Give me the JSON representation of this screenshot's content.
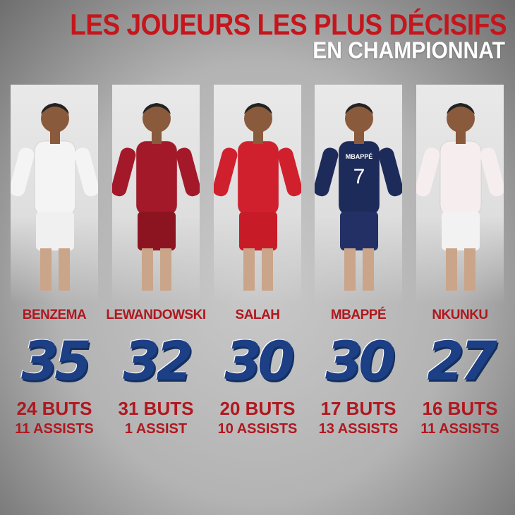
{
  "header": {
    "title": "LES JOUEURS LES PLUS DÉCISIFS",
    "subtitle": "EN CHAMPIONNAT"
  },
  "colors": {
    "accent_red": "#b0171f",
    "number_blue": "#1c3f86"
  },
  "players": [
    {
      "name": "BENZEMA",
      "total": "35",
      "goals": "24 BUTS",
      "assists": "11 ASSISTS",
      "jersey": "#f4f4f4",
      "shorts": "#f0f0f0"
    },
    {
      "name": "LEWANDOWSKI",
      "total": "32",
      "goals": "31 BUTS",
      "assists": "1 ASSIST",
      "jersey": "#a3192a",
      "shorts": "#8c1420"
    },
    {
      "name": "SALAH",
      "total": "30",
      "goals": "20 BUTS",
      "assists": "10 ASSISTS",
      "jersey": "#d0202e",
      "shorts": "#c81b28"
    },
    {
      "name": "MBAPPÉ",
      "total": "30",
      "goals": "17 BUTS",
      "assists": "13 ASSISTS",
      "jersey": "#1d2b5a",
      "shorts": "#233066",
      "shirt_text": "MBAPPÉ",
      "shirt_number": "7"
    },
    {
      "name": "NKUNKU",
      "total": "27",
      "goals": "16 BUTS",
      "assists": "11 ASSISTS",
      "jersey": "#f6eeee",
      "shorts": "#f2f2f2"
    }
  ]
}
